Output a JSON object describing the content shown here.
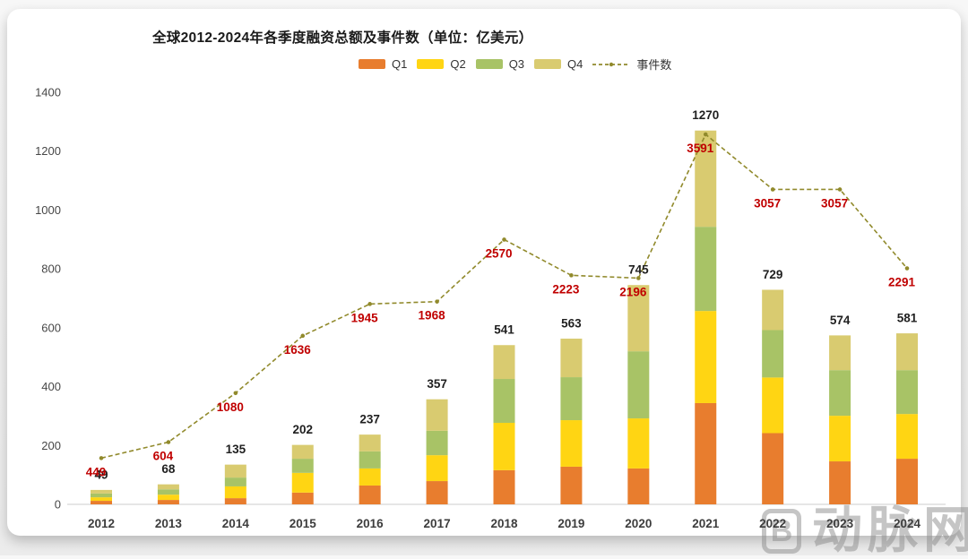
{
  "title": "全球2012-2024年各季度融资总额及事件数（单位：亿美元）",
  "legend": {
    "q1": "Q1",
    "q2": "Q2",
    "q3": "Q3",
    "q4": "Q4",
    "line": "事件数"
  },
  "watermark": {
    "logo_letter": "B",
    "text": "动脉网"
  },
  "colors": {
    "q1": "#E87D2E",
    "q2": "#FFD513",
    "q3": "#A8C366",
    "q4": "#D9CB70",
    "line": "#918A2C",
    "event_label": "#C00000",
    "total_label": "#1f1f1f",
    "axis_text": "#474747",
    "axis_line": "#d8d8d8"
  },
  "chart_data": {
    "type": "bar",
    "subtype": "stacked-bars-with-line",
    "title": "全球2012-2024年各季度融资总额及事件数（单位：亿美元）",
    "categories": [
      "2012",
      "2013",
      "2014",
      "2015",
      "2016",
      "2017",
      "2018",
      "2019",
      "2020",
      "2021",
      "2022",
      "2023",
      "2024"
    ],
    "series": [
      {
        "name": "Q1",
        "color_key": "q1",
        "values": [
          12,
          15,
          21,
          40,
          64,
          79,
          116,
          128,
          122,
          344,
          242,
          146,
          155
        ]
      },
      {
        "name": "Q2",
        "color_key": "q2",
        "values": [
          12,
          18,
          40,
          67,
          58,
          88,
          161,
          158,
          170,
          313,
          189,
          155,
          152
        ]
      },
      {
        "name": "Q3",
        "color_key": "q3",
        "values": [
          13,
          18,
          30,
          48,
          58,
          83,
          149,
          146,
          228,
          286,
          161,
          155,
          149
        ]
      },
      {
        "name": "Q4",
        "color_key": "q4",
        "values": [
          12,
          17,
          44,
          47,
          57,
          107,
          115,
          131,
          225,
          327,
          137,
          118,
          125
        ]
      }
    ],
    "bar_totals": [
      49,
      68,
      135,
      202,
      237,
      357,
      541,
      563,
      745,
      1270,
      729,
      574,
      581
    ],
    "line_series": {
      "name": "事件数",
      "values": [
        449,
        604,
        1080,
        1636,
        1945,
        1968,
        2570,
        2223,
        2196,
        3591,
        3057,
        3057,
        2291
      ]
    },
    "y_axis": {
      "min": 0,
      "max": 1400,
      "step": 200,
      "ticks": [
        "0",
        "200",
        "400",
        "600",
        "800",
        "1000",
        "1200",
        "1400"
      ]
    },
    "secondary_axis": {
      "min": 0,
      "max": 4000,
      "visible": false
    },
    "grid": false,
    "legend_position": "top",
    "xlabel": "",
    "ylabel": ""
  }
}
